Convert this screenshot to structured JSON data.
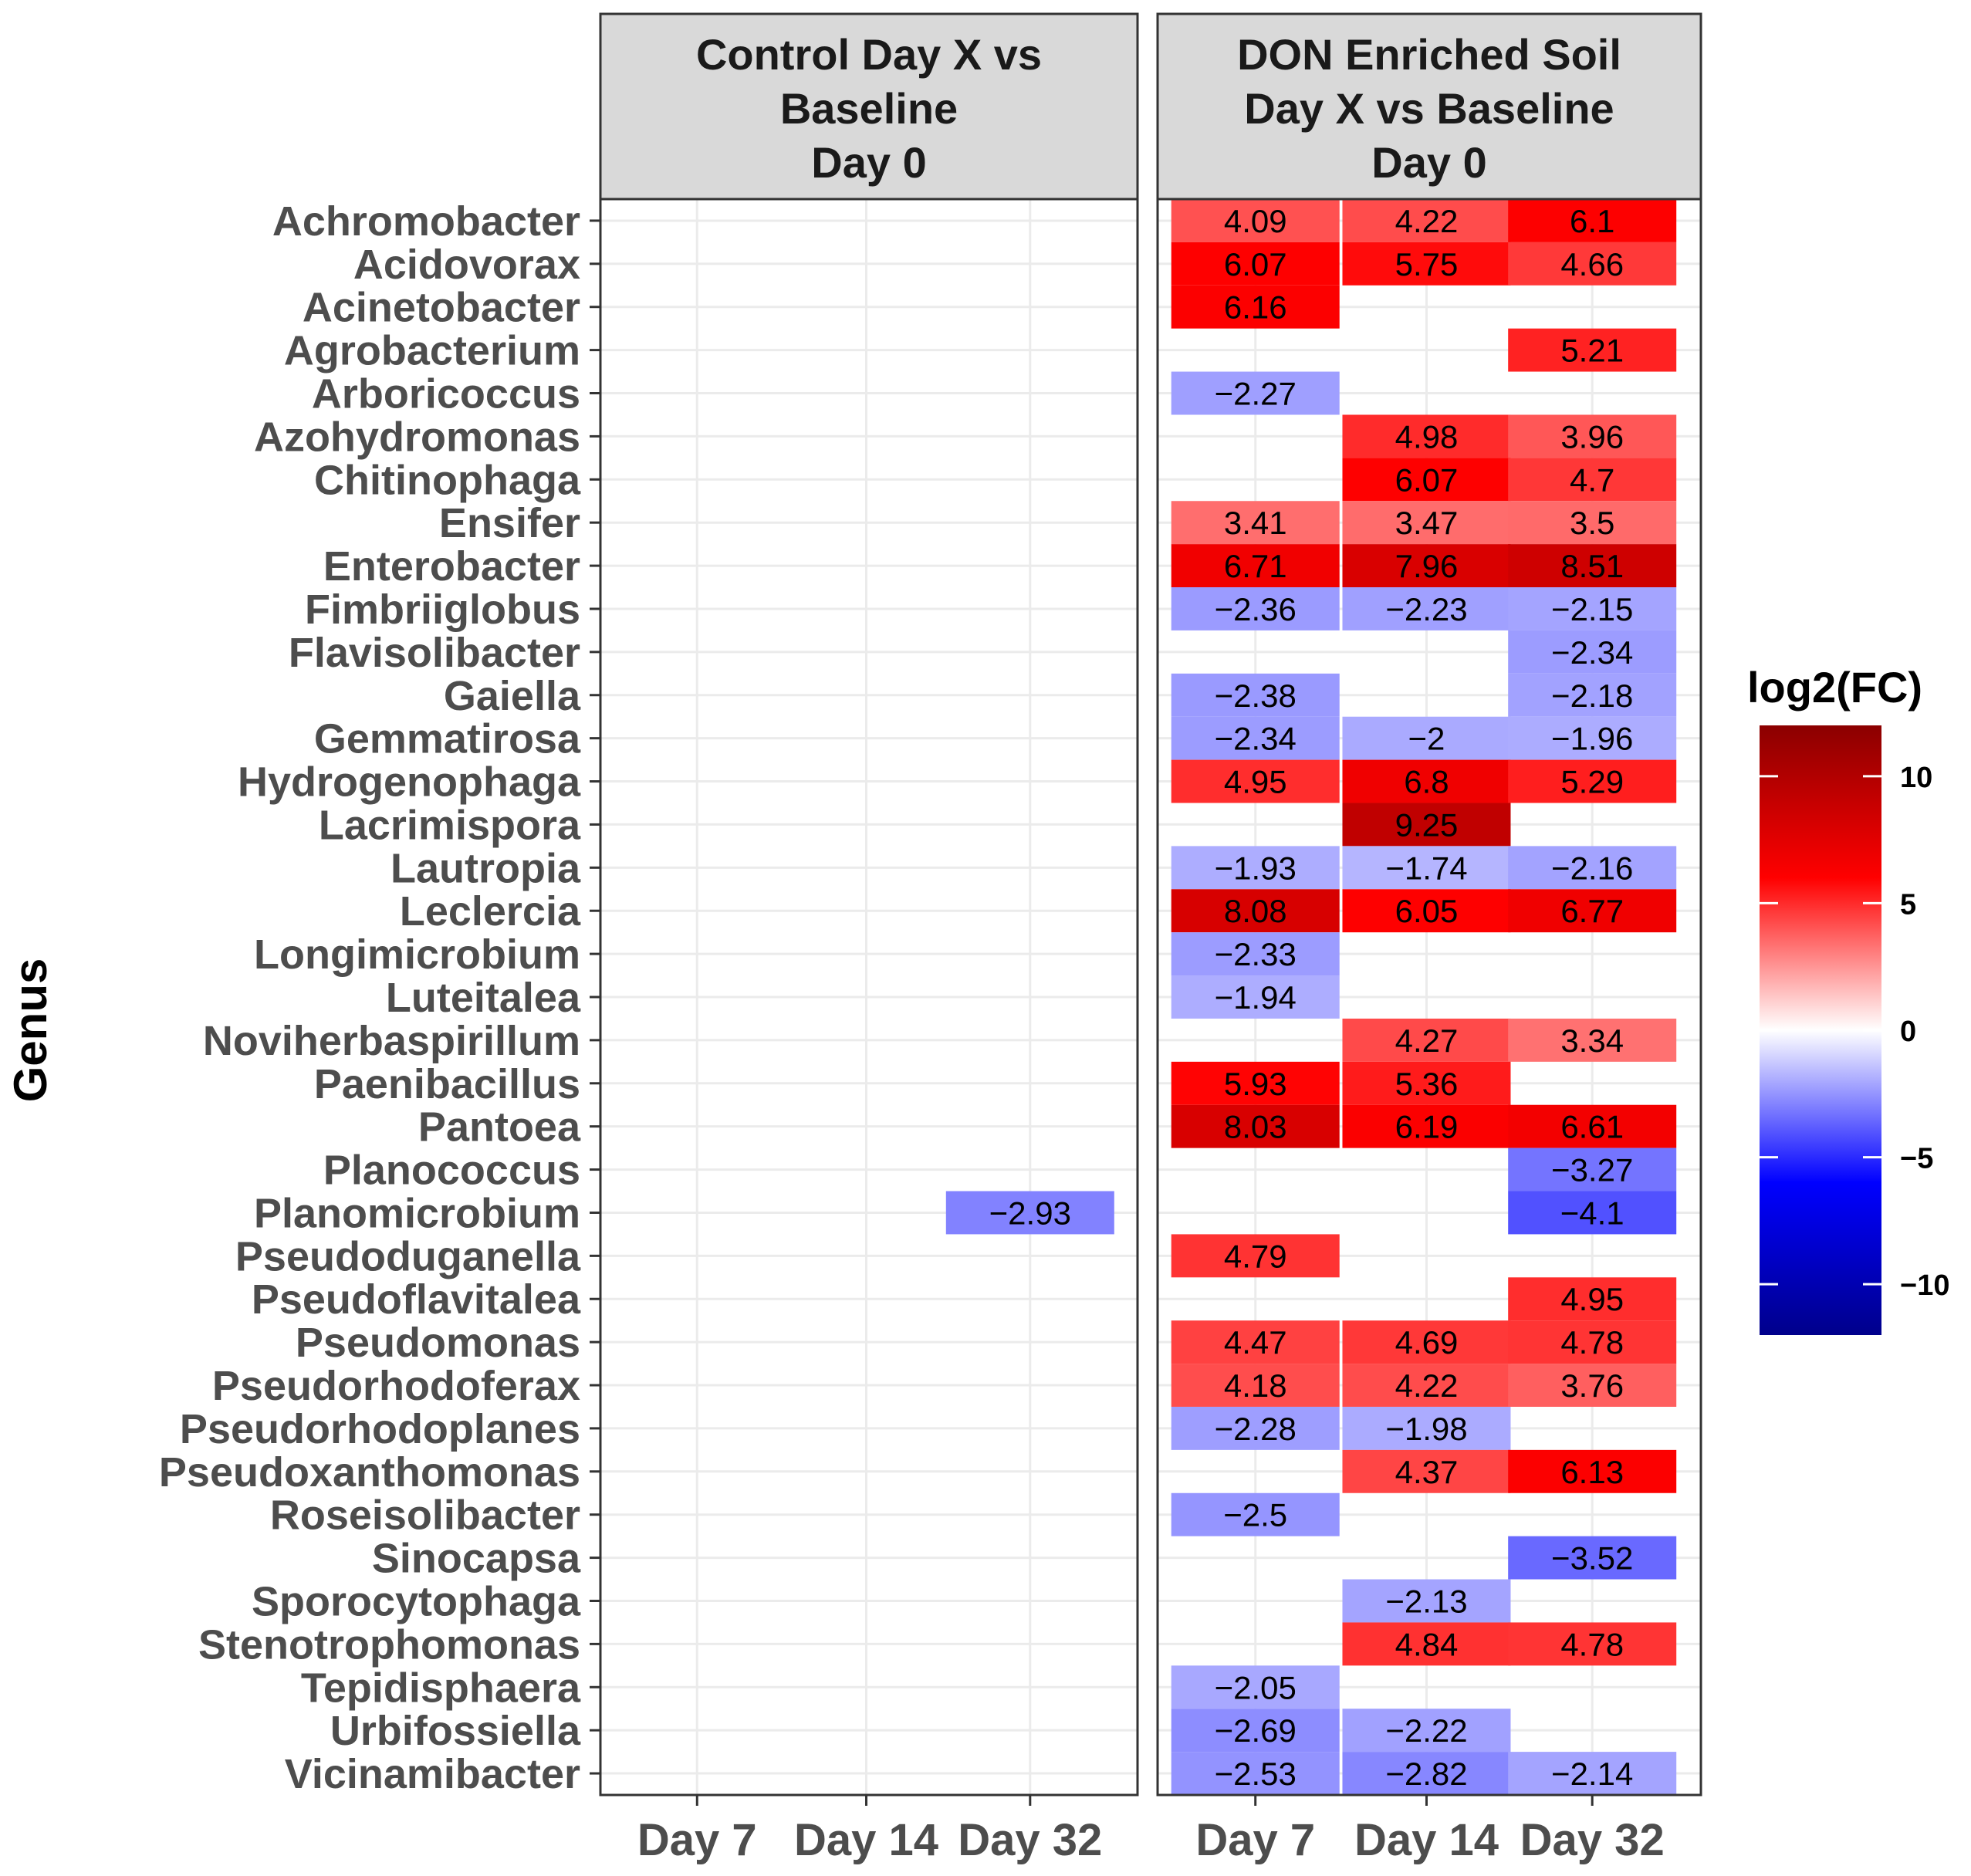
{
  "chart_data": {
    "type": "heatmap",
    "ylabel": "Genus",
    "x_categories": [
      "Day 7",
      "Day 14",
      "Day 32"
    ],
    "genera": [
      "Achromobacter",
      "Acidovorax",
      "Acinetobacter",
      "Agrobacterium",
      "Arboricoccus",
      "Azohydromonas",
      "Chitinophaga",
      "Ensifer",
      "Enterobacter",
      "Fimbriiglobus",
      "Flavisolibacter",
      "Gaiella",
      "Gemmatirosa",
      "Hydrogenophaga",
      "Lacrimispora",
      "Lautropia",
      "Leclercia",
      "Longimicrobium",
      "Luteitalea",
      "Noviherbaspirillum",
      "Paenibacillus",
      "Pantoea",
      "Planococcus",
      "Planomicrobium",
      "Pseudoduganella",
      "Pseudoflavitalea",
      "Pseudomonas",
      "Pseudorhodoferax",
      "Pseudorhodoplanes",
      "Pseudoxanthomonas",
      "Roseisolibacter",
      "Sinocapsa",
      "Sporocytophaga",
      "Stenotrophomonas",
      "Tepidisphaera",
      "Urbifossiella",
      "Vicinamibacter"
    ],
    "panels": [
      {
        "title_lines": [
          "Control Day X vs",
          "Baseline",
          "Day 0"
        ],
        "values": [
          [
            null,
            null,
            null
          ],
          [
            null,
            null,
            null
          ],
          [
            null,
            null,
            null
          ],
          [
            null,
            null,
            null
          ],
          [
            null,
            null,
            null
          ],
          [
            null,
            null,
            null
          ],
          [
            null,
            null,
            null
          ],
          [
            null,
            null,
            null
          ],
          [
            null,
            null,
            null
          ],
          [
            null,
            null,
            null
          ],
          [
            null,
            null,
            null
          ],
          [
            null,
            null,
            null
          ],
          [
            null,
            null,
            null
          ],
          [
            null,
            null,
            null
          ],
          [
            null,
            null,
            null
          ],
          [
            null,
            null,
            null
          ],
          [
            null,
            null,
            null
          ],
          [
            null,
            null,
            null
          ],
          [
            null,
            null,
            null
          ],
          [
            null,
            null,
            null
          ],
          [
            null,
            null,
            null
          ],
          [
            null,
            null,
            null
          ],
          [
            null,
            null,
            null
          ],
          [
            null,
            null,
            -2.93
          ],
          [
            null,
            null,
            null
          ],
          [
            null,
            null,
            null
          ],
          [
            null,
            null,
            null
          ],
          [
            null,
            null,
            null
          ],
          [
            null,
            null,
            null
          ],
          [
            null,
            null,
            null
          ],
          [
            null,
            null,
            null
          ],
          [
            null,
            null,
            null
          ],
          [
            null,
            null,
            null
          ],
          [
            null,
            null,
            null
          ],
          [
            null,
            null,
            null
          ],
          [
            null,
            null,
            null
          ],
          [
            null,
            null,
            null
          ]
        ]
      },
      {
        "title_lines": [
          "DON Enriched Soil",
          "Day X vs Baseline",
          "Day 0"
        ],
        "values": [
          [
            4.09,
            4.22,
            6.1
          ],
          [
            6.07,
            5.75,
            4.66
          ],
          [
            6.16,
            null,
            null
          ],
          [
            null,
            null,
            5.21
          ],
          [
            -2.27,
            null,
            null
          ],
          [
            null,
            4.98,
            3.96
          ],
          [
            null,
            6.07,
            4.7
          ],
          [
            3.41,
            3.47,
            3.5
          ],
          [
            6.71,
            7.96,
            8.51
          ],
          [
            -2.36,
            -2.23,
            -2.15
          ],
          [
            null,
            null,
            -2.34
          ],
          [
            -2.38,
            null,
            -2.18
          ],
          [
            -2.34,
            -2,
            -1.96
          ],
          [
            4.95,
            6.8,
            5.29
          ],
          [
            null,
            9.25,
            null
          ],
          [
            -1.93,
            -1.74,
            -2.16
          ],
          [
            8.08,
            6.05,
            6.77
          ],
          [
            -2.33,
            null,
            null
          ],
          [
            -1.94,
            null,
            null
          ],
          [
            null,
            4.27,
            3.34
          ],
          [
            5.93,
            5.36,
            null
          ],
          [
            8.03,
            6.19,
            6.61
          ],
          [
            null,
            null,
            -3.27
          ],
          [
            null,
            null,
            -4.1
          ],
          [
            4.79,
            null,
            null
          ],
          [
            null,
            null,
            4.95
          ],
          [
            4.47,
            4.69,
            4.78
          ],
          [
            4.18,
            4.22,
            3.76
          ],
          [
            -2.28,
            -1.98,
            null
          ],
          [
            null,
            4.37,
            6.13
          ],
          [
            -2.5,
            null,
            null
          ],
          [
            null,
            null,
            -3.52
          ],
          [
            null,
            -2.13,
            null
          ],
          [
            null,
            4.84,
            4.78
          ],
          [
            -2.05,
            null,
            null
          ],
          [
            -2.69,
            -2.22,
            null
          ],
          [
            -2.53,
            -2.82,
            -2.14
          ]
        ]
      }
    ],
    "legend": {
      "title": "log2(FC)",
      "range": [
        -12,
        12
      ],
      "ticks": [
        10,
        5,
        0,
        -5,
        -10
      ],
      "colors": {
        "low": "#00008B",
        "mid_low": "#0000FF",
        "mid": "#FFFFFF",
        "mid_high": "#FF0000",
        "high": "#8B0000"
      }
    }
  }
}
